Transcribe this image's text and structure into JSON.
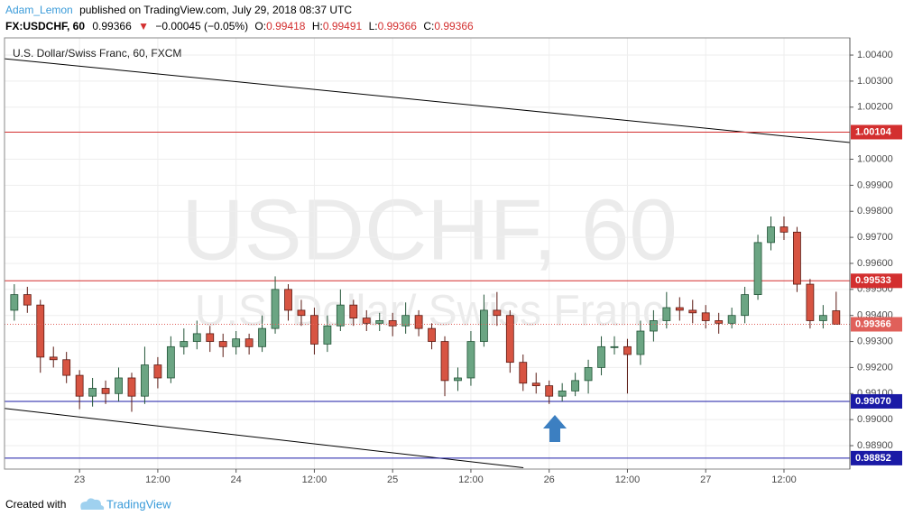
{
  "header": {
    "author": "Adam_Lemon",
    "published": "published on TradingView.com, July 29, 2018 08:37 UTC",
    "symbol": "FX:USDCHF, 60",
    "direction": "▼",
    "change": "−0.00045 (−0.05%)",
    "open_label": "O:",
    "high_label": "H:",
    "low_label": "L:",
    "close_label": "C:"
  },
  "footer": {
    "created": "Created with",
    "brand": "TradingView"
  },
  "chart_data": {
    "type": "candlestick",
    "title": "U.S. Dollar/Swiss Franc, 60, FXCM",
    "watermark": "USDCHF, 60",
    "watermark_sub": "U.S. Dollar/ Swiss Franc",
    "x": [
      -10,
      -8,
      -6,
      -4,
      -2,
      0,
      2,
      4,
      6,
      8,
      10,
      12,
      14,
      16,
      18,
      20,
      22,
      24,
      26,
      28,
      30,
      32,
      34,
      36,
      38,
      40,
      42,
      44,
      46,
      48,
      50,
      52,
      54,
      56,
      58,
      60,
      62,
      64,
      66,
      68,
      70,
      72,
      74,
      76,
      78,
      80,
      82,
      84,
      86,
      88,
      90,
      92,
      94,
      96,
      98,
      100,
      102,
      104,
      106,
      108,
      110,
      112,
      114,
      116
    ],
    "open": [
      0.9942,
      0.9948,
      0.9944,
      0.9924,
      0.9923,
      0.9917,
      0.9909,
      0.9912,
      0.991,
      0.9916,
      0.9909,
      0.9921,
      0.9916,
      0.9928,
      0.993,
      0.9933,
      0.993,
      0.9928,
      0.9931,
      0.9928,
      0.9935,
      0.995,
      0.9942,
      0.994,
      0.9929,
      0.9936,
      0.9944,
      0.9939,
      0.9937,
      0.9938,
      0.9936,
      0.994,
      0.9935,
      0.993,
      0.9915,
      0.9916,
      0.993,
      0.9942,
      0.994,
      0.9922,
      0.9914,
      0.9913,
      0.9909,
      0.9911,
      0.9915,
      0.992,
      0.9928,
      0.9928,
      0.9925,
      0.9934,
      0.9938,
      0.9943,
      0.9942,
      0.9941,
      0.9938,
      0.9937,
      0.994,
      0.9948,
      0.9968,
      0.9974,
      0.9972,
      0.9952,
      0.9938,
      0.99418
    ],
    "high": [
      0.9952,
      0.9951,
      0.9946,
      0.9928,
      0.9926,
      0.9919,
      0.9916,
      0.9915,
      0.992,
      0.9918,
      0.9928,
      0.9924,
      0.9932,
      0.9935,
      0.9938,
      0.9936,
      0.9933,
      0.9934,
      0.9933,
      0.994,
      0.9955,
      0.9952,
      0.9946,
      0.9943,
      0.994,
      0.995,
      0.9946,
      0.9942,
      0.9941,
      0.9941,
      0.9945,
      0.9942,
      0.9937,
      0.9932,
      0.992,
      0.9934,
      0.9948,
      0.9949,
      0.9942,
      0.9925,
      0.9918,
      0.9915,
      0.9914,
      0.9918,
      0.9923,
      0.9932,
      0.9932,
      0.9931,
      0.9938,
      0.9942,
      0.9949,
      0.9947,
      0.9946,
      0.9944,
      0.9941,
      0.9943,
      0.9951,
      0.9971,
      0.9978,
      0.9978,
      0.9974,
      0.9954,
      0.9944,
      0.99491
    ],
    "low": [
      0.9938,
      0.9941,
      0.9918,
      0.992,
      0.9914,
      0.9904,
      0.9905,
      0.9906,
      0.9907,
      0.9903,
      0.9906,
      0.9912,
      0.9914,
      0.9925,
      0.9927,
      0.9926,
      0.9924,
      0.9925,
      0.9925,
      0.9926,
      0.9933,
      0.9938,
      0.9936,
      0.9925,
      0.9926,
      0.9934,
      0.9936,
      0.9934,
      0.9934,
      0.9932,
      0.9933,
      0.9932,
      0.9927,
      0.9909,
      0.9911,
      0.9913,
      0.9928,
      0.9936,
      0.9918,
      0.9911,
      0.991,
      0.9906,
      0.9907,
      0.9909,
      0.991,
      0.9917,
      0.9925,
      0.991,
      0.9921,
      0.993,
      0.9935,
      0.9938,
      0.9937,
      0.9935,
      0.9933,
      0.9935,
      0.9937,
      0.9946,
      0.9965,
      0.9969,
      0.9949,
      0.9935,
      0.9935,
      0.99366
    ],
    "close": [
      0.9948,
      0.9944,
      0.9924,
      0.9923,
      0.9917,
      0.9909,
      0.9912,
      0.991,
      0.9916,
      0.9909,
      0.9921,
      0.9916,
      0.9928,
      0.993,
      0.9933,
      0.993,
      0.9928,
      0.9931,
      0.9928,
      0.9935,
      0.995,
      0.9942,
      0.994,
      0.9929,
      0.9936,
      0.9944,
      0.9939,
      0.9937,
      0.9938,
      0.9936,
      0.994,
      0.9935,
      0.993,
      0.9915,
      0.9916,
      0.993,
      0.9942,
      0.994,
      0.9922,
      0.9914,
      0.9913,
      0.9909,
      0.9911,
      0.9915,
      0.992,
      0.9928,
      0.9928,
      0.9925,
      0.9934,
      0.9938,
      0.9943,
      0.9942,
      0.9941,
      0.9938,
      0.9937,
      0.994,
      0.9948,
      0.9968,
      0.9974,
      0.9972,
      0.9952,
      0.9938,
      0.994,
      0.99366
    ],
    "up_color": "#6ba583",
    "down_color": "#d75442",
    "up_border": "#225437",
    "down_border": "#5b1a13",
    "hlines": {
      "values": [
        1.00104,
        0.99533,
        0.9907,
        0.98852
      ],
      "value_labels": [
        "1.00104",
        "0.99533",
        "0.99070",
        "0.98852"
      ],
      "colors": [
        "#d32f2f",
        "#d32f2f",
        "#1a1aa6",
        "#1a1aa6"
      ]
    },
    "last_color": "#e0605a",
    "trendlines": [
      {
        "x": [
          -11.5,
          118.1
        ],
        "y": [
          1.00386,
          1.00064
        ]
      },
      {
        "x": [
          -11.5,
          68.05
        ],
        "y": [
          0.99043,
          0.98815
        ]
      }
    ],
    "xlim": [
      -11.5,
      118.1
    ],
    "ylim": [
      0.9881,
      1.00466
    ],
    "xticks": [
      {
        "value": 0,
        "label": "23"
      },
      {
        "value": 12,
        "label": "12:00"
      },
      {
        "value": 24,
        "label": "24"
      },
      {
        "value": 36,
        "label": "12:00"
      },
      {
        "value": 48,
        "label": "25"
      },
      {
        "value": 60,
        "label": "12:00"
      },
      {
        "value": 72,
        "label": "26"
      },
      {
        "value": 84,
        "label": "12:00"
      },
      {
        "value": 96,
        "label": "27"
      },
      {
        "value": 108,
        "label": "12:00"
      }
    ],
    "yticks": [
      {
        "value": 1.004,
        "label": "1.00400"
      },
      {
        "value": 1.003,
        "label": "1.00300"
      },
      {
        "value": 1.002,
        "label": "1.00200"
      },
      {
        "value": 1.0,
        "label": "1.00000"
      },
      {
        "value": 0.999,
        "label": "0.99900"
      },
      {
        "value": 0.998,
        "label": "0.99800"
      },
      {
        "value": 0.997,
        "label": "0.99700"
      },
      {
        "value": 0.996,
        "label": "0.99600"
      },
      {
        "value": 0.995,
        "label": "0.99500"
      },
      {
        "value": 0.994,
        "label": "0.99400"
      },
      {
        "value": 0.993,
        "label": "0.99300"
      },
      {
        "value": 0.992,
        "label": "0.99200"
      },
      {
        "value": 0.991,
        "label": "0.99100"
      },
      {
        "value": 0.99,
        "label": "0.99000"
      },
      {
        "value": 0.989,
        "label": "0.98900"
      }
    ],
    "grid": true
  }
}
